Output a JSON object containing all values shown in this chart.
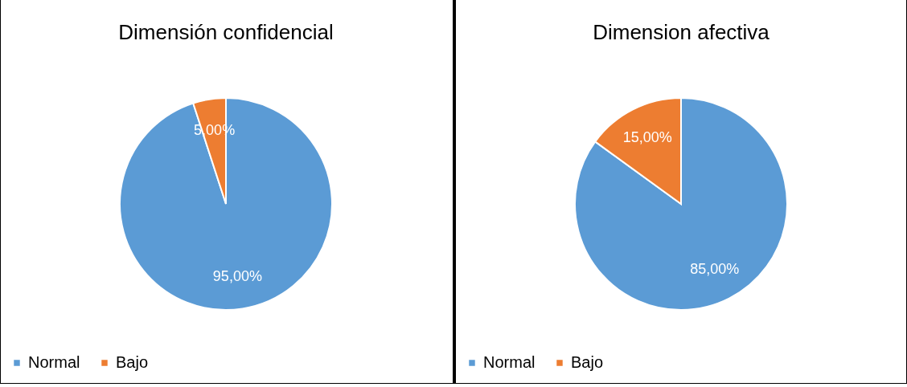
{
  "chart_data": [
    {
      "type": "pie",
      "title": "Dimensión confidencial",
      "categories": [
        "Normal",
        "Bajo"
      ],
      "values": [
        95,
        5
      ],
      "colors": [
        "#5b9bd5",
        "#ed7d31"
      ],
      "value_labels": [
        "95,00%",
        "5,00%"
      ],
      "legend": "bottom"
    },
    {
      "type": "pie",
      "title": "Dimension afectiva",
      "categories": [
        "Normal",
        "Bajo"
      ],
      "values": [
        85,
        15
      ],
      "colors": [
        "#5b9bd5",
        "#ed7d31"
      ],
      "value_labels": [
        "85,00%",
        "15,00%"
      ],
      "legend": "bottom"
    }
  ]
}
